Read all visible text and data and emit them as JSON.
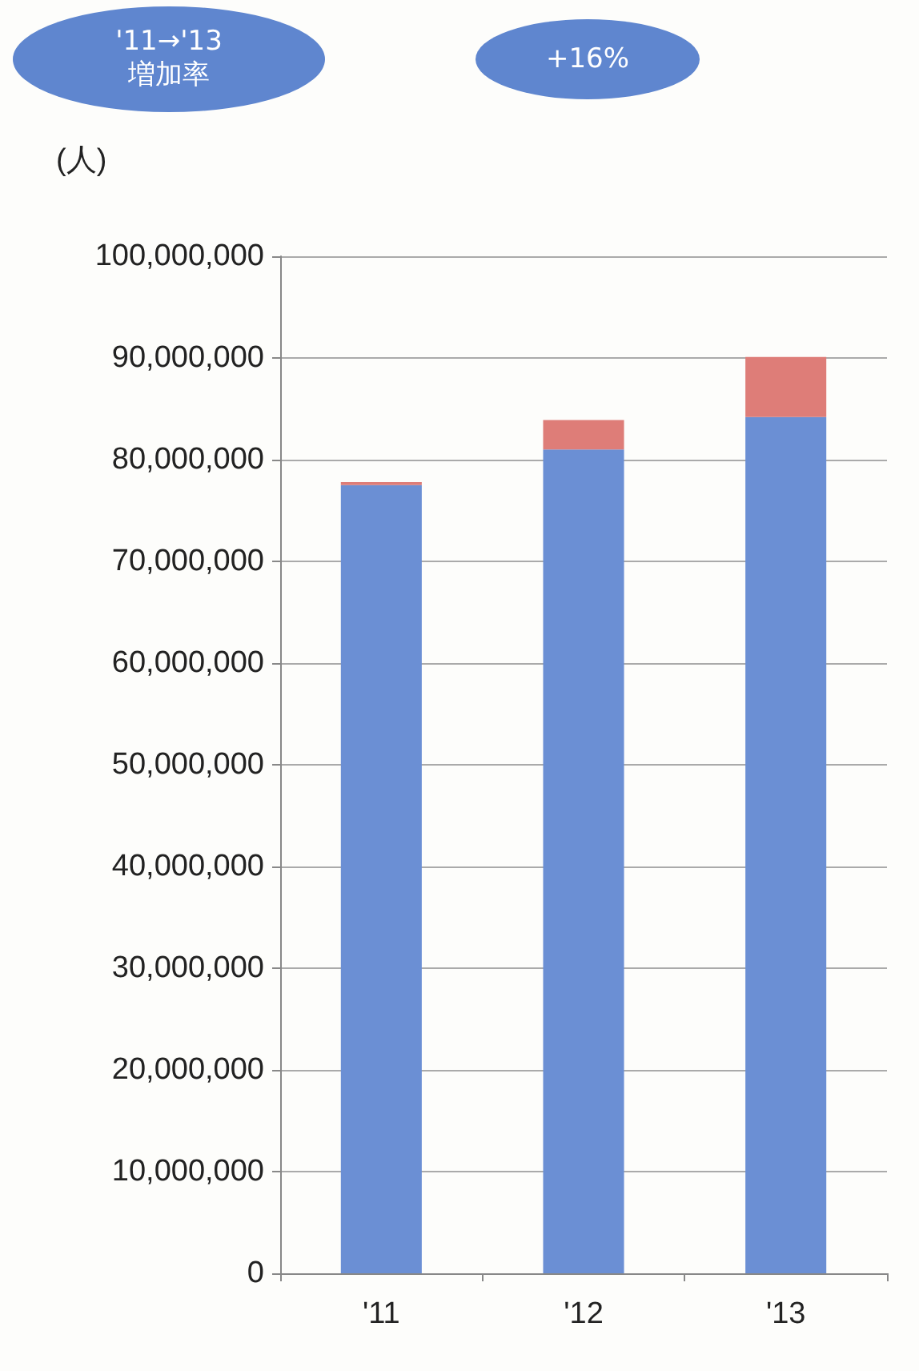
{
  "chart_data": {
    "type": "bar",
    "stacked": true,
    "ylabel": "(人)",
    "annotations": [
      "'11→'13\n増加率",
      "+16%"
    ],
    "categories": [
      "'11",
      "'12",
      "'13"
    ],
    "series": [
      {
        "color": "#6b8fd4",
        "values": [
          77500000,
          81000000,
          84200000
        ]
      },
      {
        "color": "#de7d78",
        "values": [
          300000,
          2900000,
          5900000
        ]
      }
    ],
    "ylim": [
      0,
      100000000
    ],
    "yticks": [
      0,
      {
        "value": 10000000,
        "label": "10,000,000"
      },
      {
        "value": 20000000,
        "label": "20,000,000"
      },
      {
        "value": 30000000,
        "label": "30,000,000"
      },
      {
        "value": 40000000,
        "label": "40,000,000"
      },
      {
        "value": 50000000,
        "label": "50,000,000"
      },
      {
        "value": 60000000,
        "label": "60,000,000"
      },
      {
        "value": 70000000,
        "label": "70,000,000"
      },
      {
        "value": 80000000,
        "label": "80,000,000"
      },
      {
        "value": 90000000,
        "label": "90,000,000"
      },
      {
        "value": 100000000,
        "label": "100,000,000"
      }
    ],
    "grid": "y"
  }
}
